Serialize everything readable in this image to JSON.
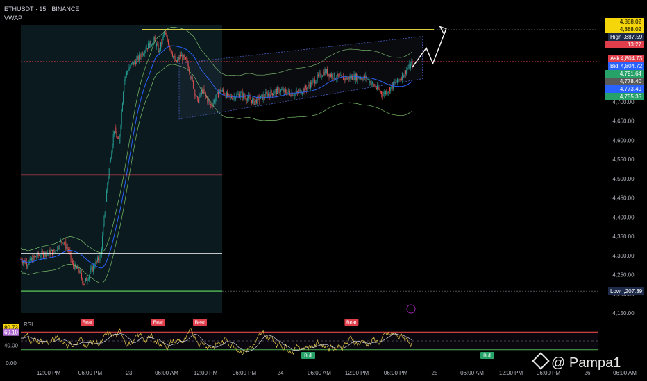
{
  "header": {
    "symbol": "ETHUSDT · 15 · BINANCE",
    "indicator": "VWAP"
  },
  "watermark": {
    "text": "@ Pampa1",
    "icon": "binance-logo-icon"
  },
  "price_labels": [
    {
      "text": "4,888.02",
      "bg": "#f5d60b",
      "fg": "#000000",
      "value": 4888.02,
      "offset": -11
    },
    {
      "text": "4,888.02",
      "bg": "#f5d60b",
      "fg": "#000000",
      "value": 4888.02,
      "offset": 0
    },
    {
      "text": "4,887.59",
      "bg": "#1e2a4a",
      "fg": "#ffffff",
      "value": 4887.59,
      "offset": 0,
      "tag": "High",
      "tag_bg": "#1e2a4a"
    },
    {
      "text": "13:27",
      "bg": "#e03e4b",
      "fg": "#ffffff",
      "value": 4880,
      "offset": 8
    },
    {
      "text": "4,804.73",
      "bg": "#e03e4b",
      "fg": "#ffffff",
      "value": 4804.73,
      "offset": -4,
      "tag": "Ask",
      "tag_bg": "#e03e4b"
    },
    {
      "text": "4,804.72",
      "bg": "#2962ff",
      "fg": "#ffffff",
      "value": 4804.72,
      "offset": 7,
      "tag": "Bid",
      "tag_bg": "#2962ff"
    },
    {
      "text": "4,791.64",
      "bg": "#26a269",
      "fg": "#ffffff",
      "value": 4791.64,
      "offset": 0
    },
    {
      "text": "4,778.40",
      "bg": "#5a5a5a",
      "fg": "#ffffff",
      "value": 4778.4,
      "offset": 2
    },
    {
      "text": "4,773.49",
      "bg": "#2962ff",
      "fg": "#ffffff",
      "value": 4773.49,
      "offset": 4
    },
    {
      "text": "4,755.35",
      "bg": "#26a269",
      "fg": "#ffffff",
      "value": 4755.35,
      "offset": 0
    },
    {
      "text": "4,207.39",
      "bg": "#1e2a4a",
      "fg": "#ffffff",
      "value": 4207.39,
      "offset": 0,
      "tag": "Low",
      "tag_bg": "#1e2a4a"
    }
  ],
  "chart_data": [
    {
      "type": "candlestick",
      "symbol": "ETHUSDT",
      "interval": "15",
      "exchange": "BINANCE",
      "ylim": [
        4150,
        4900
      ],
      "y_ticks": [
        4700,
        4650,
        4600,
        4550,
        4500,
        4450,
        4400,
        4350,
        4300,
        4250,
        4200,
        4150
      ],
      "x_ticks": [
        "12:00 PM",
        "06:00 PM",
        "23",
        "06:00 AM",
        "12:00 PM",
        "06:00 PM",
        "24",
        "06:00 AM",
        "12:00 PM",
        "06:00 PM",
        "25",
        "06:00 AM",
        "12:00 PM",
        "06:00 PM",
        "26",
        "06:00 AM"
      ],
      "high": 4887.59,
      "low": 4207.39,
      "last": 4804.73,
      "key_path": [
        [
          0,
          4290
        ],
        [
          8,
          4280
        ],
        [
          20,
          4300
        ],
        [
          40,
          4310
        ],
        [
          50,
          4340
        ],
        [
          58,
          4310
        ],
        [
          62,
          4275
        ],
        [
          70,
          4260
        ],
        [
          76,
          4225
        ],
        [
          84,
          4260
        ],
        [
          96,
          4300
        ],
        [
          104,
          4490
        ],
        [
          112,
          4630
        ],
        [
          118,
          4590
        ],
        [
          124,
          4760
        ],
        [
          130,
          4790
        ],
        [
          140,
          4810
        ],
        [
          150,
          4840
        ],
        [
          160,
          4860
        ],
        [
          166,
          4830
        ],
        [
          172,
          4880
        ],
        [
          178,
          4850
        ],
        [
          186,
          4800
        ],
        [
          192,
          4820
        ],
        [
          200,
          4800
        ],
        [
          206,
          4750
        ],
        [
          212,
          4700
        ],
        [
          218,
          4730
        ],
        [
          228,
          4690
        ],
        [
          240,
          4730
        ],
        [
          250,
          4710
        ],
        [
          264,
          4720
        ],
        [
          280,
          4700
        ],
        [
          296,
          4720
        ],
        [
          310,
          4730
        ],
        [
          330,
          4720
        ],
        [
          345,
          4740
        ],
        [
          360,
          4770
        ],
        [
          365,
          4780
        ],
        [
          372,
          4770
        ],
        [
          385,
          4760
        ],
        [
          400,
          4765
        ],
        [
          415,
          4762
        ],
        [
          425,
          4740
        ],
        [
          435,
          4720
        ],
        [
          445,
          4740
        ],
        [
          455,
          4760
        ],
        [
          462,
          4780
        ],
        [
          470,
          4800
        ]
      ],
      "levels": [
        {
          "name": "high-line",
          "value": 4887.59,
          "color": "#f5e94b"
        },
        {
          "name": "resistance-line",
          "value": 4510,
          "color": "#ff5252"
        },
        {
          "name": "support-line",
          "value": 4305,
          "color": "#ffffff"
        },
        {
          "name": "low-line",
          "value": 4207.39,
          "color": "#4caf50"
        },
        {
          "name": "last-price-line",
          "value": 4804.73,
          "color": "#e03e4b"
        }
      ],
      "projection": [
        [
          470,
          4840
        ],
        [
          478,
          4800
        ],
        [
          494,
          4890
        ]
      ]
    },
    {
      "type": "line",
      "title": "RSI",
      "ylim": [
        0,
        100
      ],
      "y_ticks": [
        {
          "label": "80.73",
          "value": 80.73,
          "bg": "#f5d60b",
          "fg": "#000"
        },
        {
          "label": "69.19",
          "value": 69.19,
          "bg": "#b06bd3",
          "fg": "#fff"
        },
        {
          "label": "40.00",
          "value": 40
        },
        {
          "label": "0.00",
          "value": 0
        }
      ],
      "levels": [
        70,
        50,
        30
      ],
      "signals": [
        {
          "text": "Bear",
          "x": 55,
          "kind": "bear"
        },
        {
          "text": "Bear",
          "x": 140,
          "kind": "bear"
        },
        {
          "text": "Bear",
          "x": 190,
          "kind": "bear"
        },
        {
          "text": "Bear",
          "x": 372,
          "kind": "bear"
        },
        {
          "text": "Bull",
          "x": 320,
          "kind": "bull"
        },
        {
          "text": "Bull",
          "x": 535,
          "kind": "bull"
        }
      ]
    }
  ],
  "colors": {
    "up": "#26a69a",
    "down": "#ef5350",
    "vwap": "#2962ff",
    "band": "#7bbf6a",
    "rsi": "#e6c84a",
    "rsi_ma": "#d1d4dc"
  }
}
